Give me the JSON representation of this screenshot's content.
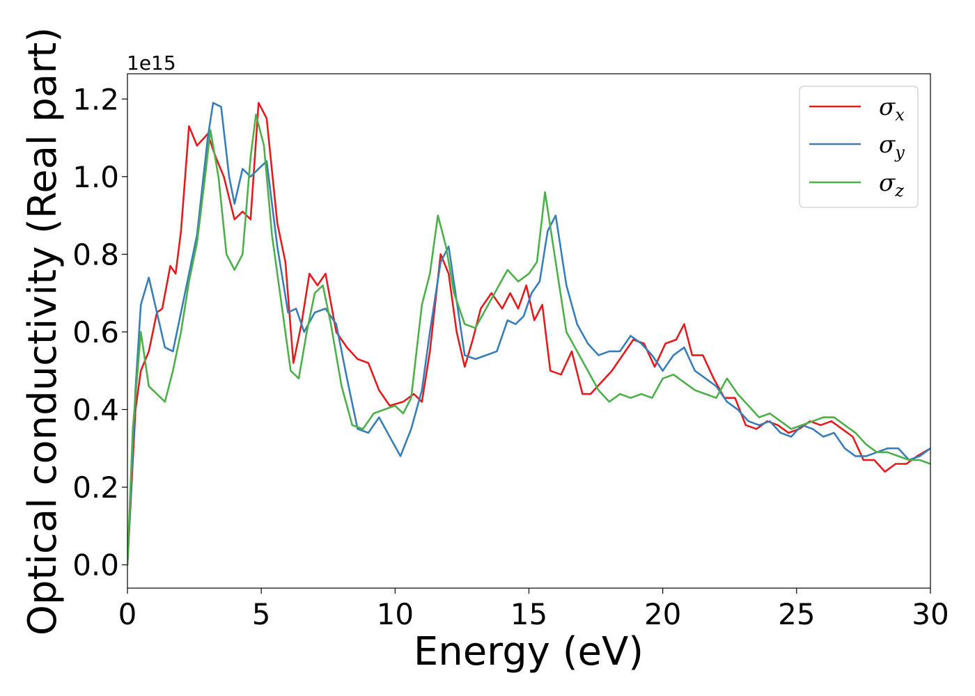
{
  "chart_data": {
    "type": "line",
    "title": "",
    "xlabel": "Energy (eV)",
    "ylabel": "Optical conductivity (Real part)",
    "y_offset_label": "1e15",
    "xlim": [
      0,
      30
    ],
    "ylim": [
      -0.06,
      1.265
    ],
    "xticks": [
      0,
      5,
      10,
      15,
      20,
      25,
      30
    ],
    "yticks": [
      0.0,
      0.2,
      0.4,
      0.6,
      0.8,
      1.0,
      1.2
    ],
    "xtick_labels": [
      "0",
      "5",
      "10",
      "15",
      "20",
      "25",
      "30"
    ],
    "ytick_labels": [
      "0.0",
      "0.2",
      "0.4",
      "0.6",
      "0.8",
      "1.0",
      "1.2"
    ],
    "grid": false,
    "legend_position": "top-right",
    "series": [
      {
        "name": "σx",
        "legend_symbol": "σ",
        "legend_subscript": "x",
        "color": "#e41a1c",
        "x": [
          0,
          0.3,
          0.5,
          0.8,
          1.1,
          1.3,
          1.6,
          1.8,
          2.0,
          2.3,
          2.6,
          3.0,
          3.3,
          3.6,
          4.0,
          4.3,
          4.6,
          4.9,
          5.2,
          5.6,
          5.9,
          6.2,
          6.5,
          6.8,
          7.1,
          7.4,
          7.8,
          8.2,
          8.6,
          9.0,
          9.4,
          9.8,
          10.3,
          10.7,
          11.0,
          11.3,
          11.7,
          12.0,
          12.3,
          12.6,
          12.9,
          13.2,
          13.6,
          14.0,
          14.3,
          14.6,
          14.9,
          15.2,
          15.5,
          15.8,
          16.2,
          16.6,
          17.0,
          17.3,
          17.7,
          18.1,
          18.5,
          18.9,
          19.3,
          19.7,
          20.1,
          20.5,
          20.8,
          21.1,
          21.5,
          21.9,
          22.3,
          22.7,
          23.1,
          23.5,
          23.9,
          24.3,
          24.7,
          25.1,
          25.5,
          25.9,
          26.3,
          26.7,
          27.1,
          27.5,
          27.9,
          28.3,
          28.7,
          29.1,
          29.5,
          30.0
        ],
        "y": [
          0.0,
          0.4,
          0.5,
          0.55,
          0.65,
          0.66,
          0.77,
          0.75,
          0.86,
          1.13,
          1.08,
          1.11,
          1.05,
          1.0,
          0.89,
          0.91,
          0.89,
          1.19,
          1.15,
          0.88,
          0.78,
          0.52,
          0.62,
          0.75,
          0.72,
          0.75,
          0.6,
          0.56,
          0.53,
          0.52,
          0.45,
          0.41,
          0.42,
          0.44,
          0.42,
          0.55,
          0.8,
          0.75,
          0.6,
          0.51,
          0.58,
          0.66,
          0.7,
          0.66,
          0.7,
          0.66,
          0.72,
          0.63,
          0.67,
          0.5,
          0.49,
          0.55,
          0.44,
          0.44,
          0.47,
          0.5,
          0.54,
          0.58,
          0.57,
          0.51,
          0.57,
          0.58,
          0.62,
          0.54,
          0.54,
          0.48,
          0.43,
          0.43,
          0.36,
          0.35,
          0.37,
          0.36,
          0.34,
          0.35,
          0.37,
          0.36,
          0.37,
          0.35,
          0.33,
          0.27,
          0.27,
          0.24,
          0.26,
          0.26,
          0.28,
          0.3
        ]
      },
      {
        "name": "σy",
        "legend_symbol": "σ",
        "legend_subscript": "y",
        "color": "#377eb8",
        "x": [
          0,
          0.3,
          0.5,
          0.8,
          1.1,
          1.4,
          1.7,
          2.0,
          2.3,
          2.6,
          3.0,
          3.2,
          3.5,
          3.8,
          4.0,
          4.3,
          4.6,
          4.9,
          5.2,
          5.6,
          6.0,
          6.3,
          6.6,
          7.0,
          7.4,
          7.8,
          8.2,
          8.6,
          9.0,
          9.4,
          9.8,
          10.2,
          10.6,
          11.0,
          11.3,
          11.7,
          12.0,
          12.3,
          12.6,
          13.0,
          13.4,
          13.8,
          14.2,
          14.5,
          14.8,
          15.1,
          15.4,
          15.7,
          16.0,
          16.4,
          16.8,
          17.2,
          17.6,
          18.0,
          18.4,
          18.8,
          19.2,
          19.6,
          20.0,
          20.4,
          20.8,
          21.2,
          21.6,
          22.0,
          22.4,
          22.8,
          23.2,
          23.6,
          24.0,
          24.4,
          24.8,
          25.2,
          25.6,
          26.0,
          26.4,
          26.8,
          27.2,
          27.6,
          28.0,
          28.4,
          28.8,
          29.2,
          29.6,
          30.0
        ],
        "y": [
          0.0,
          0.45,
          0.67,
          0.74,
          0.65,
          0.56,
          0.55,
          0.65,
          0.75,
          0.85,
          1.1,
          1.19,
          1.18,
          1.0,
          0.93,
          1.02,
          1.0,
          1.02,
          1.04,
          0.82,
          0.65,
          0.66,
          0.6,
          0.65,
          0.66,
          0.62,
          0.48,
          0.35,
          0.34,
          0.38,
          0.33,
          0.28,
          0.35,
          0.45,
          0.6,
          0.78,
          0.82,
          0.68,
          0.54,
          0.53,
          0.54,
          0.55,
          0.63,
          0.62,
          0.64,
          0.7,
          0.73,
          0.86,
          0.9,
          0.72,
          0.62,
          0.57,
          0.54,
          0.55,
          0.55,
          0.59,
          0.57,
          0.54,
          0.5,
          0.54,
          0.56,
          0.5,
          0.48,
          0.46,
          0.42,
          0.4,
          0.37,
          0.36,
          0.37,
          0.34,
          0.33,
          0.36,
          0.35,
          0.33,
          0.34,
          0.3,
          0.28,
          0.28,
          0.29,
          0.3,
          0.3,
          0.27,
          0.28,
          0.3
        ]
      },
      {
        "name": "σz",
        "legend_symbol": "σ",
        "legend_subscript": "z",
        "color": "#4daf4a",
        "x": [
          0,
          0.2,
          0.5,
          0.8,
          1.1,
          1.4,
          1.7,
          2.0,
          2.3,
          2.6,
          2.9,
          3.1,
          3.4,
          3.7,
          4.0,
          4.3,
          4.6,
          4.8,
          5.1,
          5.4,
          5.8,
          6.1,
          6.4,
          6.7,
          7.0,
          7.3,
          7.6,
          8.0,
          8.4,
          8.8,
          9.2,
          9.6,
          10.0,
          10.3,
          10.6,
          11.0,
          11.3,
          11.6,
          11.9,
          12.2,
          12.6,
          13.0,
          13.4,
          13.8,
          14.2,
          14.6,
          15.0,
          15.3,
          15.6,
          16.0,
          16.4,
          16.8,
          17.2,
          17.6,
          18.0,
          18.4,
          18.8,
          19.2,
          19.6,
          20.0,
          20.4,
          20.8,
          21.2,
          21.6,
          22.0,
          22.4,
          22.8,
          23.2,
          23.6,
          24.0,
          24.4,
          24.8,
          25.2,
          25.6,
          26.0,
          26.4,
          26.8,
          27.2,
          27.6,
          28.0,
          28.4,
          28.8,
          29.2,
          29.6,
          30.0
        ],
        "y": [
          0.0,
          0.35,
          0.6,
          0.46,
          0.44,
          0.42,
          0.5,
          0.6,
          0.73,
          0.83,
          1.0,
          1.12,
          1.0,
          0.8,
          0.76,
          0.8,
          1.05,
          1.16,
          1.08,
          0.85,
          0.65,
          0.5,
          0.48,
          0.6,
          0.7,
          0.72,
          0.62,
          0.46,
          0.36,
          0.35,
          0.39,
          0.4,
          0.41,
          0.39,
          0.43,
          0.67,
          0.75,
          0.9,
          0.82,
          0.7,
          0.62,
          0.61,
          0.66,
          0.71,
          0.76,
          0.73,
          0.75,
          0.78,
          0.96,
          0.78,
          0.6,
          0.55,
          0.5,
          0.45,
          0.42,
          0.44,
          0.43,
          0.44,
          0.43,
          0.48,
          0.49,
          0.47,
          0.45,
          0.44,
          0.43,
          0.48,
          0.44,
          0.41,
          0.38,
          0.39,
          0.37,
          0.35,
          0.36,
          0.37,
          0.38,
          0.38,
          0.36,
          0.34,
          0.31,
          0.29,
          0.29,
          0.28,
          0.27,
          0.27,
          0.26
        ]
      }
    ]
  }
}
